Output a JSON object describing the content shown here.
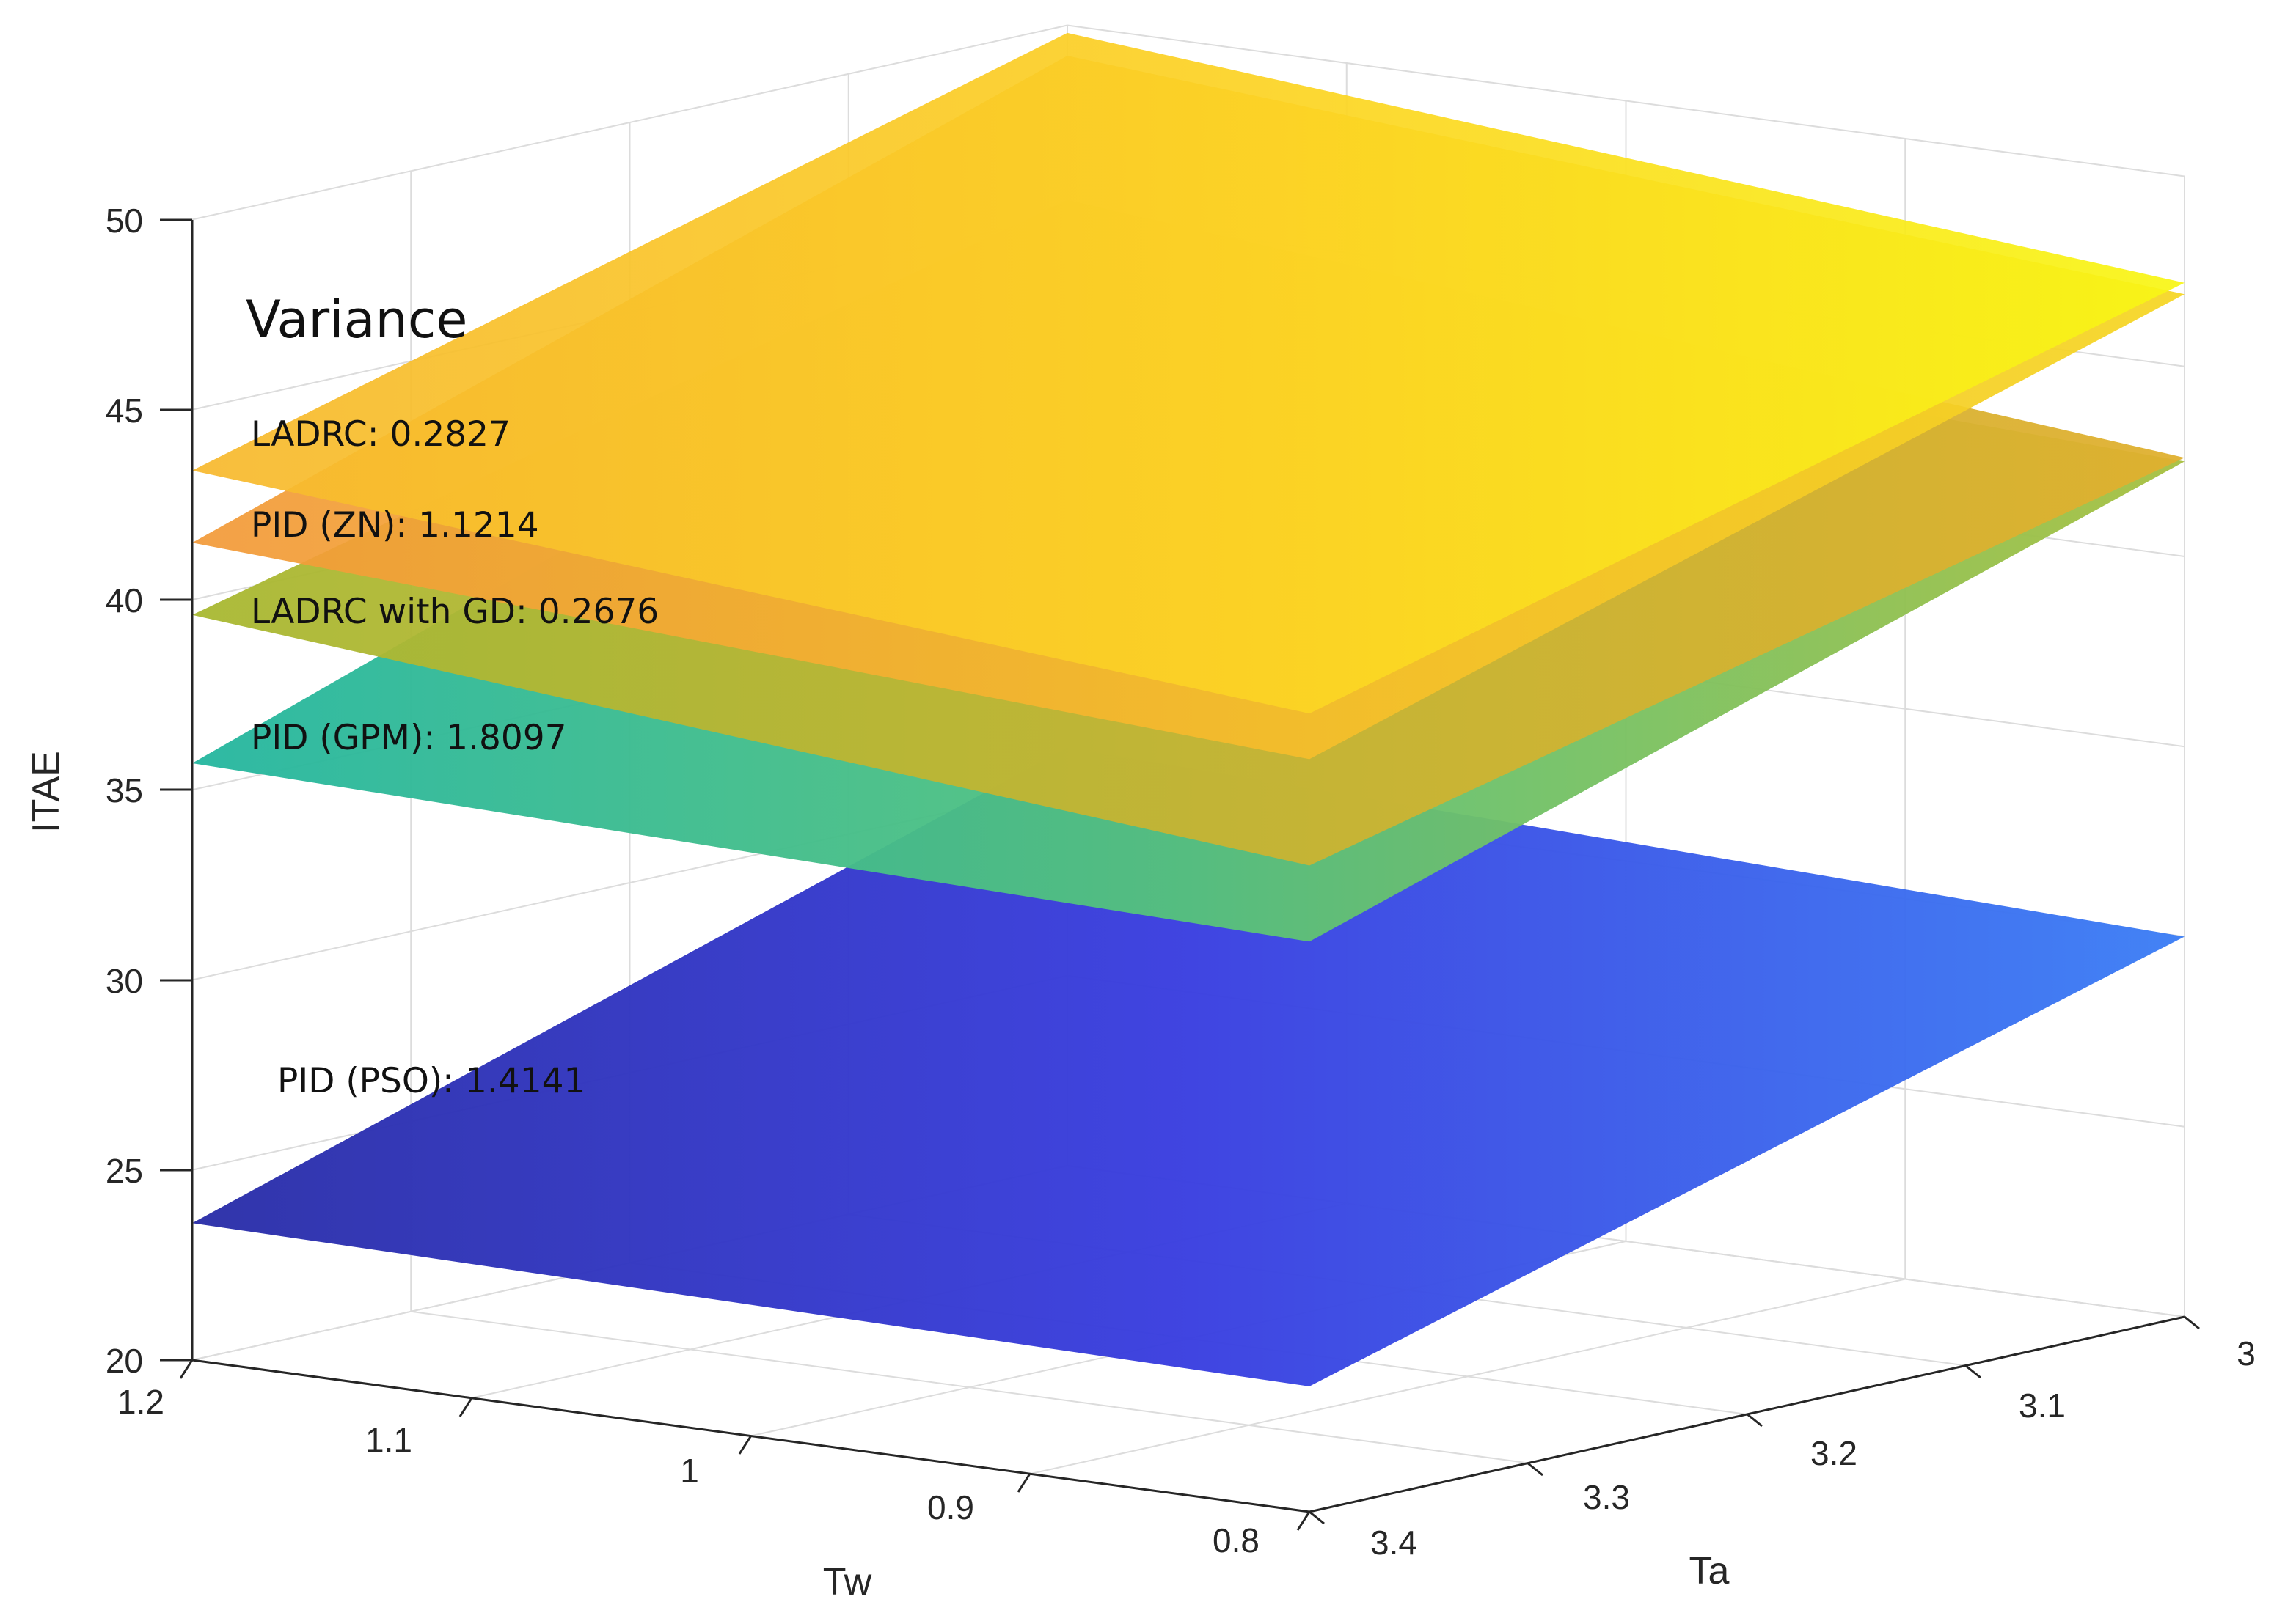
{
  "chart_data": {
    "type": "surface3d",
    "title": "",
    "xlabel": "Tw",
    "ylabel": "Ta",
    "zlabel": "ITAE",
    "xlim": [
      0.8,
      1.2
    ],
    "ylim": [
      3.0,
      3.4
    ],
    "zlim": [
      20,
      50
    ],
    "x_ticks": [
      "1.2",
      "1.1",
      "1",
      "0.9",
      "0.8"
    ],
    "y_ticks": [
      "3",
      "3.1",
      "3.2",
      "3.3",
      "3.4"
    ],
    "z_ticks": [
      "20",
      "25",
      "30",
      "35",
      "40",
      "45",
      "50"
    ],
    "grid": true,
    "colormap": "parula",
    "annotation_title": "Variance",
    "series": [
      {
        "name": "LADRC",
        "variance": 0.2827,
        "label": "LADRC: 0.2827",
        "corners": {
          "Tw1.2_Ta3.4": 43.4,
          "Tw0.8_Ta3.4": 41.0,
          "Tw0.8_Ta3.0": 47.2,
          "Tw1.2_Ta3.0": 49.8
        }
      },
      {
        "name": "PID (ZN)",
        "variance": 1.1214,
        "label": "PID (ZN): 1.1214",
        "corners": {
          "Tw1.2_Ta3.4": 41.5,
          "Tw0.8_Ta3.4": 39.8,
          "Tw0.8_Ta3.0": 46.9,
          "Tw1.2_Ta3.0": 49.2
        }
      },
      {
        "name": "LADRC with GD",
        "variance": 0.2676,
        "label": "LADRC with GD: 0.2676",
        "corners": {
          "Tw1.2_Ta3.4": 39.6,
          "Tw0.8_Ta3.4": 37.0,
          "Tw0.8_Ta3.0": 42.6,
          "Tw1.2_Ta3.0": 45.4
        }
      },
      {
        "name": "PID (GPM)",
        "variance": 1.8097,
        "label": "PID (GPM): 1.8097",
        "corners": {
          "Tw1.2_Ta3.4": 35.7,
          "Tw0.8_Ta3.4": 35.0,
          "Tw0.8_Ta3.0": 42.5,
          "Tw1.2_Ta3.0": 43.8
        }
      },
      {
        "name": "PID (PSO)",
        "variance": 1.4141,
        "label": "PID (PSO): 1.4141",
        "corners": {
          "Tw1.2_Ta3.4": 23.6,
          "Tw0.8_Ta3.4": 23.3,
          "Tw0.8_Ta3.0": 30.0,
          "Tw1.2_Ta3.0": 31.0
        }
      }
    ]
  }
}
